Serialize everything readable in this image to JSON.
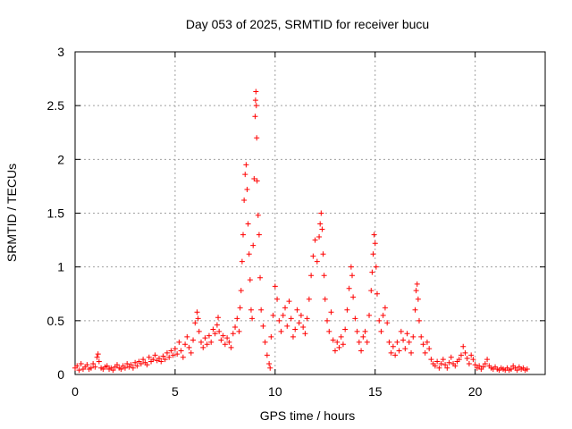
{
  "chart_data": {
    "type": "scatter",
    "title": "Day 053 of 2025, SRMTID for receiver bucu",
    "xlabel": "GPS time / hours",
    "ylabel": "SRMTID / TECUs",
    "xlim": [
      0,
      23.5
    ],
    "ylim": [
      0,
      3
    ],
    "x_ticks": [
      0,
      5,
      10,
      15,
      20
    ],
    "x_tick_labels": [
      "0",
      "5",
      "10",
      "15",
      "20"
    ],
    "y_ticks": [
      0,
      0.5,
      1,
      1.5,
      2,
      2.5,
      3
    ],
    "y_tick_labels": [
      "0",
      "0.5",
      "1",
      "1.5",
      "2",
      "2.5",
      "3"
    ],
    "grid": true,
    "marker": "+",
    "series_color": "#ff0000",
    "series": [
      {
        "name": "SRMTID",
        "points": [
          [
            0.0,
            0.06
          ],
          [
            0.1,
            0.08
          ],
          [
            0.2,
            0.04
          ],
          [
            0.3,
            0.1
          ],
          [
            0.4,
            0.05
          ],
          [
            0.5,
            0.07
          ],
          [
            0.6,
            0.09
          ],
          [
            0.7,
            0.05
          ],
          [
            0.8,
            0.06
          ],
          [
            0.9,
            0.1
          ],
          [
            1.0,
            0.07
          ],
          [
            1.1,
            0.16
          ],
          [
            1.15,
            0.19
          ],
          [
            1.2,
            0.12
          ],
          [
            1.3,
            0.06
          ],
          [
            1.4,
            0.05
          ],
          [
            1.5,
            0.07
          ],
          [
            1.6,
            0.08
          ],
          [
            1.7,
            0.05
          ],
          [
            1.8,
            0.06
          ],
          [
            1.9,
            0.04
          ],
          [
            2.0,
            0.07
          ],
          [
            2.1,
            0.09
          ],
          [
            2.2,
            0.06
          ],
          [
            2.3,
            0.05
          ],
          [
            2.4,
            0.08
          ],
          [
            2.5,
            0.06
          ],
          [
            2.6,
            0.1
          ],
          [
            2.7,
            0.07
          ],
          [
            2.8,
            0.09
          ],
          [
            2.9,
            0.06
          ],
          [
            3.0,
            0.11
          ],
          [
            3.1,
            0.08
          ],
          [
            3.2,
            0.12
          ],
          [
            3.3,
            0.1
          ],
          [
            3.4,
            0.14
          ],
          [
            3.5,
            0.11
          ],
          [
            3.6,
            0.09
          ],
          [
            3.7,
            0.16
          ],
          [
            3.8,
            0.12
          ],
          [
            3.9,
            0.14
          ],
          [
            4.0,
            0.18
          ],
          [
            4.1,
            0.13
          ],
          [
            4.2,
            0.15
          ],
          [
            4.3,
            0.12
          ],
          [
            4.4,
            0.17
          ],
          [
            4.5,
            0.14
          ],
          [
            4.6,
            0.2
          ],
          [
            4.7,
            0.16
          ],
          [
            4.8,
            0.22
          ],
          [
            4.9,
            0.18
          ],
          [
            5.0,
            0.24
          ],
          [
            5.1,
            0.19
          ],
          [
            5.2,
            0.3
          ],
          [
            5.3,
            0.22
          ],
          [
            5.4,
            0.16
          ],
          [
            5.5,
            0.28
          ],
          [
            5.6,
            0.35
          ],
          [
            5.7,
            0.25
          ],
          [
            5.8,
            0.2
          ],
          [
            5.9,
            0.32
          ],
          [
            6.0,
            0.48
          ],
          [
            6.1,
            0.58
          ],
          [
            6.15,
            0.52
          ],
          [
            6.2,
            0.4
          ],
          [
            6.3,
            0.3
          ],
          [
            6.4,
            0.25
          ],
          [
            6.5,
            0.34
          ],
          [
            6.6,
            0.28
          ],
          [
            6.7,
            0.36
          ],
          [
            6.8,
            0.3
          ],
          [
            6.9,
            0.42
          ],
          [
            7.0,
            0.38
          ],
          [
            7.1,
            0.46
          ],
          [
            7.15,
            0.53
          ],
          [
            7.2,
            0.4
          ],
          [
            7.3,
            0.32
          ],
          [
            7.4,
            0.36
          ],
          [
            7.5,
            0.28
          ],
          [
            7.6,
            0.34
          ],
          [
            7.7,
            0.3
          ],
          [
            7.8,
            0.25
          ],
          [
            7.9,
            0.38
          ],
          [
            8.0,
            0.44
          ],
          [
            8.1,
            0.52
          ],
          [
            8.2,
            0.4
          ],
          [
            8.25,
            0.62
          ],
          [
            8.3,
            0.78
          ],
          [
            8.35,
            1.05
          ],
          [
            8.4,
            1.3
          ],
          [
            8.45,
            1.62
          ],
          [
            8.5,
            1.86
          ],
          [
            8.55,
            1.95
          ],
          [
            8.6,
            1.72
          ],
          [
            8.65,
            1.4
          ],
          [
            8.7,
            1.12
          ],
          [
            8.75,
            0.88
          ],
          [
            8.8,
            0.6
          ],
          [
            8.85,
            0.52
          ],
          [
            8.9,
            1.2
          ],
          [
            8.95,
            1.82
          ],
          [
            9.0,
            2.4
          ],
          [
            9.02,
            2.55
          ],
          [
            9.04,
            2.63
          ],
          [
            9.06,
            2.5
          ],
          [
            9.08,
            2.2
          ],
          [
            9.1,
            1.8
          ],
          [
            9.15,
            1.48
          ],
          [
            9.2,
            1.3
          ],
          [
            9.25,
            0.9
          ],
          [
            9.3,
            0.6
          ],
          [
            9.4,
            0.45
          ],
          [
            9.5,
            0.3
          ],
          [
            9.6,
            0.18
          ],
          [
            9.7,
            0.1
          ],
          [
            9.75,
            0.06
          ],
          [
            9.8,
            0.35
          ],
          [
            9.9,
            0.55
          ],
          [
            10.0,
            0.82
          ],
          [
            10.1,
            0.7
          ],
          [
            10.2,
            0.5
          ],
          [
            10.3,
            0.4
          ],
          [
            10.4,
            0.55
          ],
          [
            10.5,
            0.62
          ],
          [
            10.6,
            0.45
          ],
          [
            10.7,
            0.68
          ],
          [
            10.8,
            0.52
          ],
          [
            10.9,
            0.35
          ],
          [
            11.0,
            0.42
          ],
          [
            11.1,
            0.6
          ],
          [
            11.2,
            0.48
          ],
          [
            11.3,
            0.55
          ],
          [
            11.4,
            0.44
          ],
          [
            11.5,
            0.38
          ],
          [
            11.6,
            0.52
          ],
          [
            11.7,
            0.7
          ],
          [
            11.8,
            0.92
          ],
          [
            11.9,
            1.1
          ],
          [
            12.0,
            1.25
          ],
          [
            12.1,
            1.05
          ],
          [
            12.2,
            1.28
          ],
          [
            12.25,
            1.4
          ],
          [
            12.3,
            1.5
          ],
          [
            12.35,
            1.35
          ],
          [
            12.4,
            1.12
          ],
          [
            12.45,
            0.92
          ],
          [
            12.5,
            0.7
          ],
          [
            12.6,
            0.5
          ],
          [
            12.7,
            0.4
          ],
          [
            12.8,
            0.58
          ],
          [
            12.9,
            0.32
          ],
          [
            13.0,
            0.22
          ],
          [
            13.1,
            0.3
          ],
          [
            13.2,
            0.25
          ],
          [
            13.3,
            0.35
          ],
          [
            13.4,
            0.28
          ],
          [
            13.5,
            0.42
          ],
          [
            13.6,
            0.6
          ],
          [
            13.7,
            0.8
          ],
          [
            13.8,
            1.0
          ],
          [
            13.85,
            0.92
          ],
          [
            13.9,
            0.72
          ],
          [
            14.0,
            0.52
          ],
          [
            14.1,
            0.4
          ],
          [
            14.2,
            0.3
          ],
          [
            14.3,
            0.22
          ],
          [
            14.4,
            0.35
          ],
          [
            14.5,
            0.4
          ],
          [
            14.6,
            0.3
          ],
          [
            14.7,
            0.55
          ],
          [
            14.8,
            0.78
          ],
          [
            14.85,
            0.95
          ],
          [
            14.9,
            1.12
          ],
          [
            14.95,
            1.3
          ],
          [
            15.0,
            1.22
          ],
          [
            15.05,
            1.0
          ],
          [
            15.1,
            0.75
          ],
          [
            15.2,
            0.5
          ],
          [
            15.3,
            0.4
          ],
          [
            15.4,
            0.55
          ],
          [
            15.5,
            0.62
          ],
          [
            15.6,
            0.48
          ],
          [
            15.7,
            0.3
          ],
          [
            15.8,
            0.2
          ],
          [
            15.9,
            0.26
          ],
          [
            16.0,
            0.18
          ],
          [
            16.1,
            0.3
          ],
          [
            16.2,
            0.22
          ],
          [
            16.3,
            0.4
          ],
          [
            16.4,
            0.32
          ],
          [
            16.5,
            0.24
          ],
          [
            16.6,
            0.38
          ],
          [
            16.7,
            0.3
          ],
          [
            16.8,
            0.2
          ],
          [
            16.9,
            0.35
          ],
          [
            17.0,
            0.6
          ],
          [
            17.05,
            0.78
          ],
          [
            17.1,
            0.84
          ],
          [
            17.15,
            0.7
          ],
          [
            17.2,
            0.5
          ],
          [
            17.3,
            0.35
          ],
          [
            17.4,
            0.28
          ],
          [
            17.5,
            0.2
          ],
          [
            17.6,
            0.3
          ],
          [
            17.7,
            0.24
          ],
          [
            17.8,
            0.14
          ],
          [
            17.9,
            0.1
          ],
          [
            18.0,
            0.08
          ],
          [
            18.1,
            0.12
          ],
          [
            18.2,
            0.06
          ],
          [
            18.3,
            0.1
          ],
          [
            18.4,
            0.14
          ],
          [
            18.5,
            0.09
          ],
          [
            18.6,
            0.06
          ],
          [
            18.7,
            0.11
          ],
          [
            18.8,
            0.16
          ],
          [
            18.9,
            0.1
          ],
          [
            19.0,
            0.08
          ],
          [
            19.1,
            0.12
          ],
          [
            19.2,
            0.14
          ],
          [
            19.3,
            0.18
          ],
          [
            19.4,
            0.26
          ],
          [
            19.5,
            0.2
          ],
          [
            19.6,
            0.15
          ],
          [
            19.7,
            0.1
          ],
          [
            19.8,
            0.18
          ],
          [
            19.9,
            0.14
          ],
          [
            20.0,
            0.09
          ],
          [
            20.1,
            0.06
          ],
          [
            20.2,
            0.08
          ],
          [
            20.3,
            0.05
          ],
          [
            20.4,
            0.07
          ],
          [
            20.5,
            0.1
          ],
          [
            20.6,
            0.14
          ],
          [
            20.7,
            0.08
          ],
          [
            20.8,
            0.06
          ],
          [
            20.9,
            0.05
          ],
          [
            21.0,
            0.07
          ],
          [
            21.1,
            0.05
          ],
          [
            21.2,
            0.04
          ],
          [
            21.3,
            0.06
          ],
          [
            21.4,
            0.05
          ],
          [
            21.5,
            0.04
          ],
          [
            21.6,
            0.06
          ],
          [
            21.7,
            0.04
          ],
          [
            21.8,
            0.05
          ],
          [
            21.9,
            0.08
          ],
          [
            22.0,
            0.06
          ],
          [
            22.1,
            0.04
          ],
          [
            22.2,
            0.07
          ],
          [
            22.3,
            0.05
          ],
          [
            22.4,
            0.06
          ],
          [
            22.5,
            0.04
          ],
          [
            22.6,
            0.05
          ]
        ]
      }
    ]
  }
}
